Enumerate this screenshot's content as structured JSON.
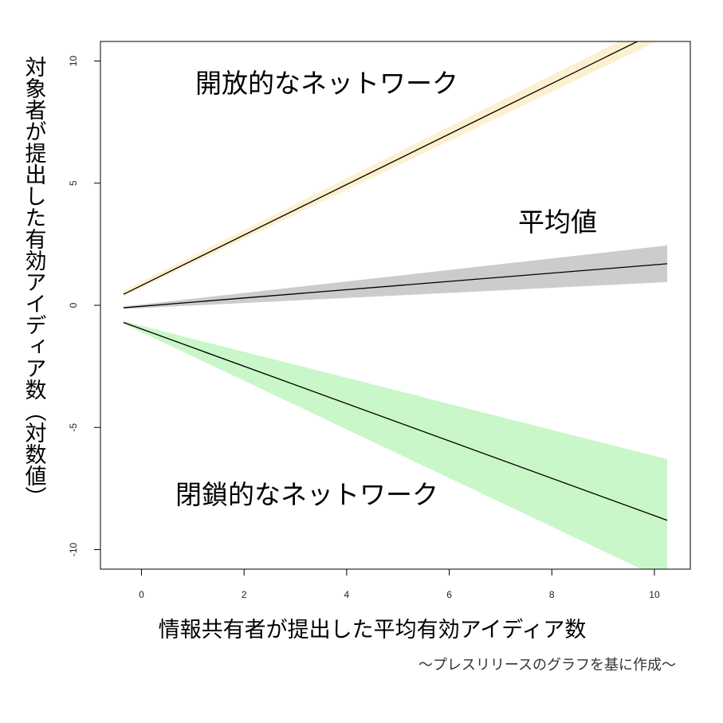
{
  "chart_data": {
    "type": "line",
    "title": "",
    "xlabel": "情報共有者が提出した平均有効アイディア数",
    "ylabel": "対象者が提出した有効アイディア数（対数値）",
    "xlim": [
      -0.8,
      10.7
    ],
    "ylim": [
      -10.8,
      10.8
    ],
    "xticks": [
      0,
      2,
      4,
      6,
      8,
      10
    ],
    "yticks": [
      -10,
      -5,
      0,
      5,
      10
    ],
    "xtick_labels": [
      "0",
      "2",
      "4",
      "6",
      "8",
      "10"
    ],
    "ytick_labels": [
      "-10",
      "-5",
      "0",
      "5",
      "10"
    ],
    "grid": false,
    "legend": "none",
    "series": [
      {
        "name": "開放的なネットワーク",
        "color": "#000000",
        "band_color": "#fdf0d0",
        "x": [
          -0.35,
          10.25
        ],
        "y": [
          0.45,
          11.4
        ],
        "lower": [
          0.35,
          11.0
        ],
        "upper": [
          0.6,
          11.8
        ]
      },
      {
        "name": "平均値",
        "color": "#000000",
        "band_color": "#cccccc",
        "x": [
          -0.35,
          10.25
        ],
        "y": [
          -0.1,
          1.7
        ],
        "lower": [
          -0.15,
          0.95
        ],
        "upper": [
          -0.05,
          2.45
        ]
      },
      {
        "name": "閉鎖的なネットワーク",
        "color": "#000000",
        "band_color": "#c9f7c9",
        "x": [
          -0.35,
          10.25
        ],
        "y": [
          -0.7,
          -8.8
        ],
        "lower": [
          -0.75,
          -11.3
        ],
        "upper": [
          -0.65,
          -6.3
        ]
      }
    ]
  },
  "caption": "～プレスリリースのグラフを基に作成～"
}
